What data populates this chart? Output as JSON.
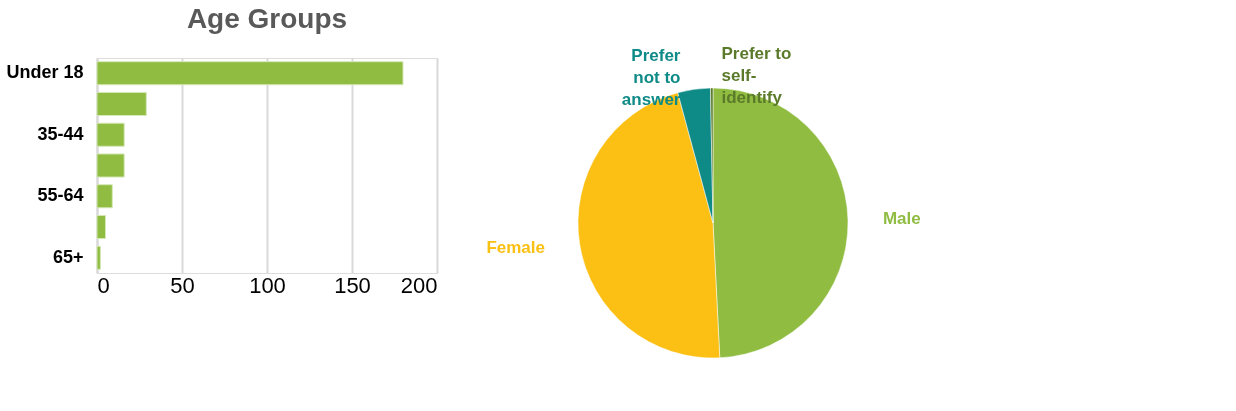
{
  "chart_data": [
    {
      "type": "bar",
      "title": "Age Groups",
      "orientation": "horizontal",
      "categories": [
        "Under 18",
        null,
        "35-44",
        null,
        "55-64",
        null,
        "65+"
      ],
      "values": [
        180,
        29,
        16,
        16,
        9,
        5,
        2
      ],
      "color": "#8fbc41",
      "xlim": [
        0,
        200
      ],
      "xticks": [
        0,
        50,
        100,
        150,
        200
      ],
      "grid": "x",
      "legend": false
    },
    {
      "type": "pie",
      "categories": [
        "Male",
        "Female",
        "Prefer not to answer",
        "Prefer to self-identify"
      ],
      "values": [
        49.2,
        46.6,
        3.9,
        0.3
      ],
      "colors": [
        "#8fbc41",
        "#fbc013",
        "#0e8a87",
        "#5a7a2a"
      ],
      "legend": false
    }
  ]
}
